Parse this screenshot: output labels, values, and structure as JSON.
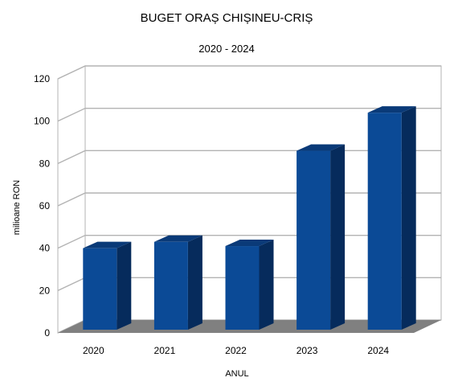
{
  "chart_data": {
    "type": "bar",
    "title": "BUGET ORAȘ CHIȘINEU-CRIȘ",
    "subtitle": "2020 - 2024",
    "xlabel": "ANUL",
    "ylabel": "milioane RON",
    "categories": [
      "2020",
      "2021",
      "2022",
      "2023",
      "2024"
    ],
    "values": [
      40,
      43,
      41,
      86,
      104
    ],
    "ylim": [
      0,
      120
    ],
    "yticks": [
      0,
      20,
      40,
      60,
      80,
      100,
      120
    ],
    "grid": true,
    "legend": "none",
    "colors": {
      "bar_front": "#0b4a96",
      "bar_side": "#062b5c",
      "bar_top": "#0a3a78",
      "floor": "#808080",
      "grid": "#b3b3b3",
      "wall": "#ffffff"
    }
  }
}
